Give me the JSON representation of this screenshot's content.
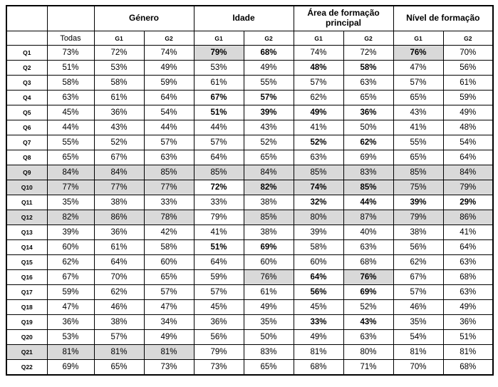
{
  "table": {
    "group_headers": [
      {
        "label": "",
        "span": 1
      },
      {
        "label": "",
        "span": 1
      },
      {
        "label": "Género",
        "span": 2
      },
      {
        "label": "Idade",
        "span": 2
      },
      {
        "label": "Área de formação principal",
        "span": 2
      },
      {
        "label": "Nível de formação",
        "span": 2
      }
    ],
    "sub_headers": [
      "",
      "Todas",
      "G1",
      "G2",
      "G1",
      "G2",
      "G1",
      "G2",
      "G1",
      "G2"
    ],
    "rows": [
      {
        "label": "Q1",
        "values": [
          "73%",
          "72%",
          "74%",
          "79%",
          "68%",
          "74%",
          "72%",
          "76%",
          "70%"
        ],
        "bold": [
          3,
          4,
          7
        ],
        "shaded": [
          3,
          7
        ]
      },
      {
        "label": "Q2",
        "values": [
          "51%",
          "53%",
          "49%",
          "53%",
          "49%",
          "48%",
          "58%",
          "47%",
          "56%"
        ],
        "bold": [
          5,
          6
        ],
        "shaded": []
      },
      {
        "label": "Q3",
        "values": [
          "58%",
          "58%",
          "59%",
          "61%",
          "55%",
          "57%",
          "63%",
          "57%",
          "61%"
        ],
        "bold": [],
        "shaded": []
      },
      {
        "label": "Q4",
        "values": [
          "63%",
          "61%",
          "64%",
          "67%",
          "57%",
          "62%",
          "65%",
          "65%",
          "59%"
        ],
        "bold": [
          3,
          4
        ],
        "shaded": []
      },
      {
        "label": "Q5",
        "values": [
          "45%",
          "36%",
          "54%",
          "51%",
          "39%",
          "49%",
          "36%",
          "43%",
          "49%"
        ],
        "bold": [
          3,
          4,
          5,
          6
        ],
        "shaded": []
      },
      {
        "label": "Q6",
        "values": [
          "44%",
          "43%",
          "44%",
          "44%",
          "43%",
          "41%",
          "50%",
          "41%",
          "48%"
        ],
        "bold": [],
        "shaded": []
      },
      {
        "label": "Q7",
        "values": [
          "55%",
          "52%",
          "57%",
          "57%",
          "52%",
          "52%",
          "62%",
          "55%",
          "54%"
        ],
        "bold": [
          5,
          6
        ],
        "shaded": []
      },
      {
        "label": "Q8",
        "values": [
          "65%",
          "67%",
          "63%",
          "64%",
          "65%",
          "63%",
          "69%",
          "65%",
          "64%"
        ],
        "bold": [],
        "shaded": []
      },
      {
        "label": "Q9",
        "values": [
          "84%",
          "84%",
          "85%",
          "85%",
          "84%",
          "85%",
          "83%",
          "85%",
          "84%"
        ],
        "bold": [],
        "shaded": [
          0,
          1,
          2,
          3,
          4,
          5,
          6,
          7,
          8
        ],
        "label_shaded": true
      },
      {
        "label": "Q10",
        "values": [
          "77%",
          "77%",
          "77%",
          "72%",
          "82%",
          "74%",
          "85%",
          "75%",
          "79%"
        ],
        "bold": [
          3,
          4,
          5,
          6
        ],
        "shaded": [
          0,
          1,
          2,
          4,
          5,
          6,
          7,
          8
        ],
        "label_shaded": true
      },
      {
        "label": "Q11",
        "values": [
          "35%",
          "38%",
          "33%",
          "33%",
          "38%",
          "32%",
          "44%",
          "39%",
          "29%"
        ],
        "bold": [
          5,
          6,
          7,
          8
        ],
        "shaded": []
      },
      {
        "label": "Q12",
        "values": [
          "82%",
          "86%",
          "78%",
          "79%",
          "85%",
          "80%",
          "87%",
          "79%",
          "86%"
        ],
        "bold": [],
        "shaded": [
          0,
          1,
          2,
          4,
          5,
          6,
          7,
          8
        ],
        "label_shaded": true
      },
      {
        "label": "Q13",
        "values": [
          "39%",
          "36%",
          "42%",
          "41%",
          "38%",
          "39%",
          "40%",
          "38%",
          "41%"
        ],
        "bold": [],
        "shaded": []
      },
      {
        "label": "Q14",
        "values": [
          "60%",
          "61%",
          "58%",
          "51%",
          "69%",
          "58%",
          "63%",
          "56%",
          "64%"
        ],
        "bold": [
          3,
          4
        ],
        "shaded": []
      },
      {
        "label": "Q15",
        "values": [
          "62%",
          "64%",
          "60%",
          "64%",
          "60%",
          "60%",
          "68%",
          "62%",
          "63%"
        ],
        "bold": [],
        "shaded": []
      },
      {
        "label": "Q16",
        "values": [
          "67%",
          "70%",
          "65%",
          "59%",
          "76%",
          "64%",
          "76%",
          "67%",
          "68%"
        ],
        "bold": [
          5,
          6
        ],
        "shaded": [
          4,
          6
        ]
      },
      {
        "label": "Q17",
        "values": [
          "59%",
          "62%",
          "57%",
          "57%",
          "61%",
          "56%",
          "69%",
          "57%",
          "63%"
        ],
        "bold": [
          5,
          6
        ],
        "shaded": []
      },
      {
        "label": "Q18",
        "values": [
          "47%",
          "46%",
          "47%",
          "45%",
          "49%",
          "45%",
          "52%",
          "46%",
          "49%"
        ],
        "bold": [],
        "shaded": []
      },
      {
        "label": "Q19",
        "values": [
          "36%",
          "38%",
          "34%",
          "36%",
          "35%",
          "33%",
          "43%",
          "35%",
          "36%"
        ],
        "bold": [
          5,
          6
        ],
        "shaded": []
      },
      {
        "label": "Q20",
        "values": [
          "53%",
          "57%",
          "49%",
          "56%",
          "50%",
          "49%",
          "63%",
          "54%",
          "51%"
        ],
        "bold": [],
        "shaded": []
      },
      {
        "label": "Q21",
        "values": [
          "81%",
          "81%",
          "81%",
          "79%",
          "83%",
          "81%",
          "80%",
          "81%",
          "81%"
        ],
        "bold": [],
        "shaded": [
          0,
          1,
          2
        ],
        "label_shaded": true
      },
      {
        "label": "Q22",
        "values": [
          "69%",
          "65%",
          "73%",
          "73%",
          "65%",
          "68%",
          "71%",
          "70%",
          "68%"
        ],
        "bold": [],
        "shaded": []
      }
    ]
  }
}
